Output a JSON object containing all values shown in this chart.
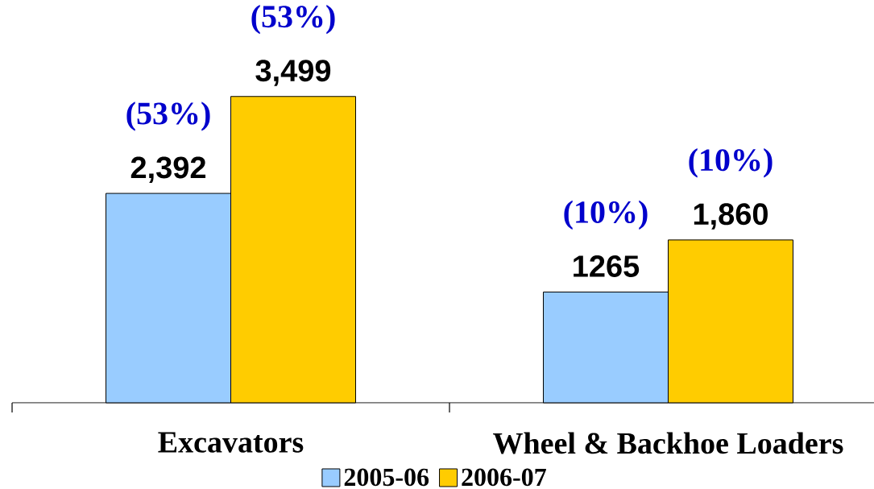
{
  "chart_data": {
    "type": "bar",
    "categories": [
      "Excavators",
      "Wheel & Backhoe Loaders"
    ],
    "series": [
      {
        "name": "2005-06",
        "color": "#99ccff",
        "values": [
          2392,
          1265
        ],
        "value_labels": [
          "2,392",
          "1265"
        ]
      },
      {
        "name": "2006-07",
        "color": "#ffcc00",
        "values": [
          3499,
          1860
        ],
        "value_labels": [
          "3,499",
          "1,860"
        ]
      }
    ],
    "annotations": [
      {
        "text": "(53%)",
        "x": "Excavators",
        "y": 2392
      },
      {
        "text": "(53%)",
        "x": "Excavators",
        "y": 3499
      },
      {
        "text": "(10%)",
        "x": "Wheel & Backhoe Loaders",
        "y": 1265
      },
      {
        "text": "(10%)",
        "x": "Wheel & Backhoe Loaders",
        "y": 1860
      }
    ],
    "legend": "bottom"
  }
}
